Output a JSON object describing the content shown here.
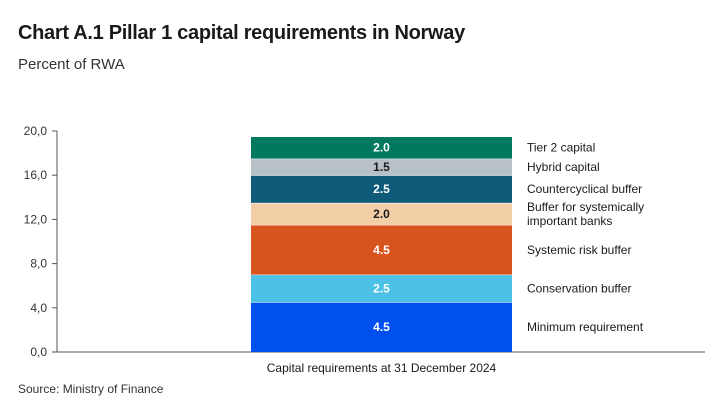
{
  "title": "Chart A.1 Pillar 1 capital requirements in Norway",
  "subtitle": "Percent of RWA",
  "source": "Source: Ministry of Finance",
  "chart_data": {
    "type": "bar",
    "stacked": true,
    "categories": [
      "Capital requirements at 31 December 2024"
    ],
    "ylim": [
      0,
      20
    ],
    "yticks": [
      "0,0",
      "4,0",
      "8,0",
      "12,0",
      "16,0",
      "20,0"
    ],
    "ytick_values": [
      0,
      4,
      8,
      12,
      16,
      20
    ],
    "grid": false,
    "legend_placement": "right",
    "series": [
      {
        "name": "Minimum requirement",
        "values": [
          4.5
        ],
        "label": "4.5",
        "color": "#0050f0",
        "label_color": "light",
        "legend_lines": [
          "Minimum requirement"
        ]
      },
      {
        "name": "Conservation buffer",
        "values": [
          2.5
        ],
        "label": "2.5",
        "color": "#4dc2e6",
        "label_color": "light",
        "legend_lines": [
          "Conservation buffer"
        ]
      },
      {
        "name": "Systemic risk buffer",
        "values": [
          4.5
        ],
        "label": "4.5",
        "color": "#d8541e",
        "label_color": "light",
        "legend_lines": [
          "Systemic risk buffer"
        ]
      },
      {
        "name": "Buffer for systemically important banks",
        "values": [
          2.0
        ],
        "label": "2.0",
        "color": "#f3cfa8",
        "label_color": "dark",
        "legend_lines": [
          "Buffer for systemically",
          "important banks"
        ]
      },
      {
        "name": "Countercyclical buffer",
        "values": [
          2.5
        ],
        "label": "2.5",
        "color": "#0e5a78",
        "label_color": "light",
        "legend_lines": [
          "Countercyclical buffer"
        ]
      },
      {
        "name": "Hybrid capital",
        "values": [
          1.5
        ],
        "label": "1.5",
        "color": "#b9c1c8",
        "label_color": "dark",
        "legend_lines": [
          "Hybrid capital"
        ]
      },
      {
        "name": "Tier 2 capital",
        "values": [
          2.0
        ],
        "label": "2.0",
        "color": "#00795f",
        "label_color": "light",
        "legend_lines": [
          "Tier 2 capital"
        ]
      }
    ]
  }
}
